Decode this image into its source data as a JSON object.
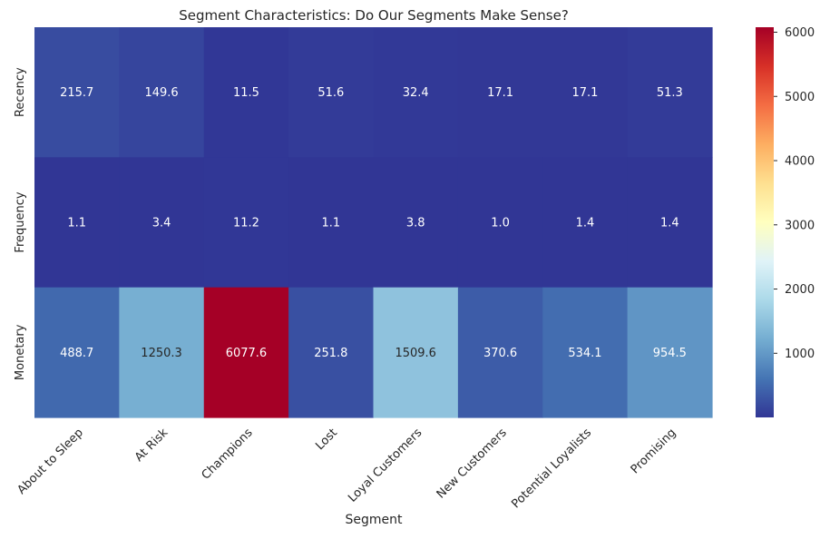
{
  "chart_data": {
    "type": "heatmap",
    "title": "Segment Characteristics: Do Our Segments Make Sense?",
    "xlabel": "Segment",
    "ylabel": "",
    "x_categories": [
      "About to Sleep",
      "At Risk",
      "Champions",
      "Lost",
      "Loyal Customers",
      "New Customers",
      "Potential Loyalists",
      "Promising"
    ],
    "y_categories": [
      "Recency",
      "Frequency",
      "Monetary"
    ],
    "values": [
      [
        215.7,
        149.6,
        11.5,
        51.6,
        32.4,
        17.1,
        17.1,
        51.3
      ],
      [
        1.1,
        3.4,
        11.2,
        1.1,
        3.8,
        1.0,
        1.4,
        1.4
      ],
      [
        488.7,
        1250.3,
        6077.6,
        251.8,
        1509.6,
        370.6,
        534.1,
        954.5
      ]
    ],
    "value_labels": [
      [
        "215.7",
        "149.6",
        "11.5",
        "51.6",
        "32.4",
        "17.1",
        "17.1",
        "51.3"
      ],
      [
        "1.1",
        "3.4",
        "11.2",
        "1.1",
        "3.8",
        "1.0",
        "1.4",
        "1.4"
      ],
      [
        "488.7",
        "1250.3",
        "6077.6",
        "251.8",
        "1509.6",
        "370.6",
        "534.1",
        "954.5"
      ]
    ],
    "colormap": "RdYlBu_r",
    "color_range": [
      1.0,
      6077.6
    ],
    "colorbar_ticks": [
      1000,
      2000,
      3000,
      4000,
      5000,
      6000
    ],
    "colorbar_tick_labels": [
      "1000",
      "2000",
      "3000",
      "4000",
      "5000",
      "6000"
    ],
    "grid": false
  }
}
